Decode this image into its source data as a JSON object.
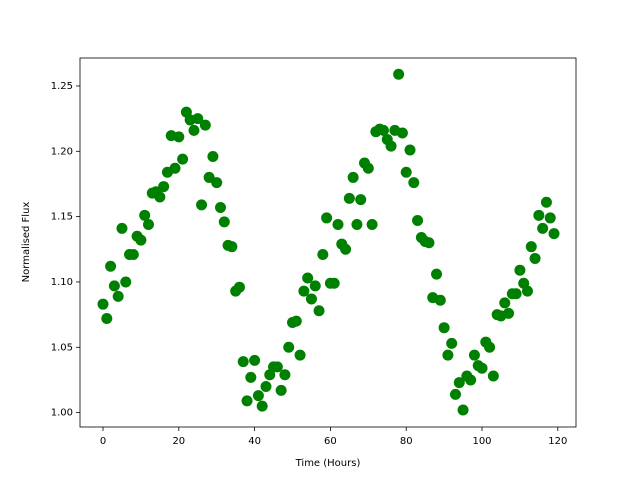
{
  "chart_data": {
    "type": "scatter",
    "xlabel": "Time (Hours)",
    "ylabel": "Normalised Flux",
    "color": "#008000",
    "x": [
      0,
      1,
      2,
      3,
      4,
      5,
      6,
      7,
      8,
      9,
      10,
      11,
      12,
      13,
      14,
      15,
      16,
      17,
      18,
      19,
      20,
      21,
      22,
      23,
      24,
      25,
      26,
      27,
      28,
      29,
      30,
      31,
      32,
      33,
      34,
      35,
      36,
      37,
      38,
      39,
      40,
      41,
      42,
      43,
      44,
      45,
      46,
      47,
      48,
      49,
      50,
      51,
      52,
      53,
      54,
      55,
      56,
      57,
      58,
      59,
      60,
      61,
      62,
      63,
      64,
      65,
      66,
      67,
      68,
      69,
      70,
      71,
      72,
      73,
      74,
      75,
      76,
      77,
      78,
      79,
      80,
      81,
      82,
      83,
      84,
      85,
      86,
      87,
      88,
      89,
      90,
      91,
      92,
      93,
      94,
      95,
      96,
      97,
      98,
      99,
      100,
      101,
      102,
      103,
      104,
      105,
      106,
      107,
      108,
      109,
      110,
      111,
      112,
      113,
      114,
      115,
      116,
      117,
      118,
      119
    ],
    "values": [
      1.083,
      1.072,
      1.112,
      1.097,
      1.089,
      1.141,
      1.1,
      1.121,
      1.121,
      1.135,
      1.132,
      1.151,
      1.144,
      1.168,
      1.169,
      1.165,
      1.173,
      1.184,
      1.212,
      1.187,
      1.211,
      1.194,
      1.23,
      1.224,
      1.216,
      1.225,
      1.159,
      1.22,
      1.18,
      1.196,
      1.176,
      1.157,
      1.146,
      1.128,
      1.127,
      1.093,
      1.096,
      1.039,
      1.009,
      1.027,
      1.04,
      1.013,
      1.005,
      1.02,
      1.029,
      1.035,
      1.035,
      1.017,
      1.029,
      1.05,
      1.069,
      1.07,
      1.044,
      1.093,
      1.103,
      1.087,
      1.097,
      1.078,
      1.121,
      1.149,
      1.099,
      1.099,
      1.144,
      1.129,
      1.125,
      1.164,
      1.18,
      1.144,
      1.163,
      1.191,
      1.187,
      1.144,
      1.215,
      1.217,
      1.216,
      1.209,
      1.204,
      1.216,
      1.259,
      1.214,
      1.184,
      1.201,
      1.176,
      1.147,
      1.134,
      1.131,
      1.13,
      1.088,
      1.106,
      1.086,
      1.065,
      1.044,
      1.053,
      1.014,
      1.023,
      1.002,
      1.028,
      1.025,
      1.044,
      1.036,
      1.034,
      1.054,
      1.05,
      1.028,
      1.075,
      1.074,
      1.084,
      1.076,
      1.091,
      1.091,
      1.109,
      1.099,
      1.093,
      1.127,
      1.118,
      1.151,
      1.141,
      1.161,
      1.149,
      1.137
    ],
    "xlim": [
      -6.07,
      124.8
    ],
    "ylim": [
      0.989,
      1.2714
    ],
    "xticks": [
      0,
      20,
      40,
      60,
      80,
      100,
      120
    ],
    "yticks": [
      {
        "value": 1.0,
        "label": "1.00"
      },
      {
        "value": 1.05,
        "label": "1.05"
      },
      {
        "value": 1.1,
        "label": "1.10"
      },
      {
        "value": 1.15,
        "label": "1.15"
      },
      {
        "value": 1.2,
        "label": "1.20"
      },
      {
        "value": 1.25,
        "label": "1.25"
      }
    ]
  }
}
